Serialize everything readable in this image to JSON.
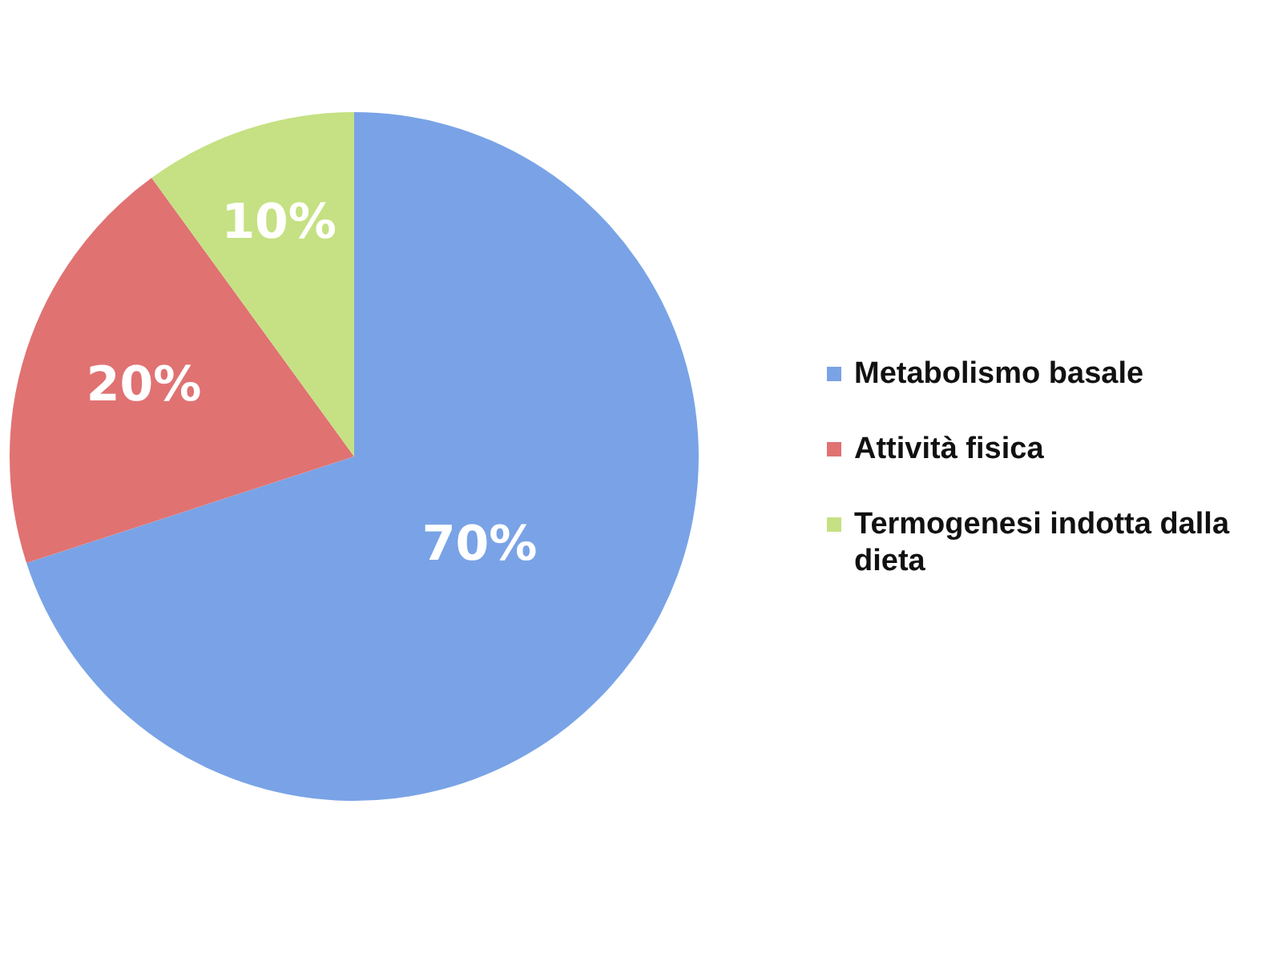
{
  "chart_data": {
    "type": "pie",
    "categories": [
      "Metabolismo basale",
      "Attività fisica",
      "Termogenesi indotta dalla dieta"
    ],
    "values": [
      70,
      20,
      10
    ],
    "colors": [
      "#79a3e6",
      "#e07272",
      "#c5e183"
    ],
    "value_labels": [
      "70%",
      "20%",
      "10%"
    ],
    "legend": "right"
  }
}
